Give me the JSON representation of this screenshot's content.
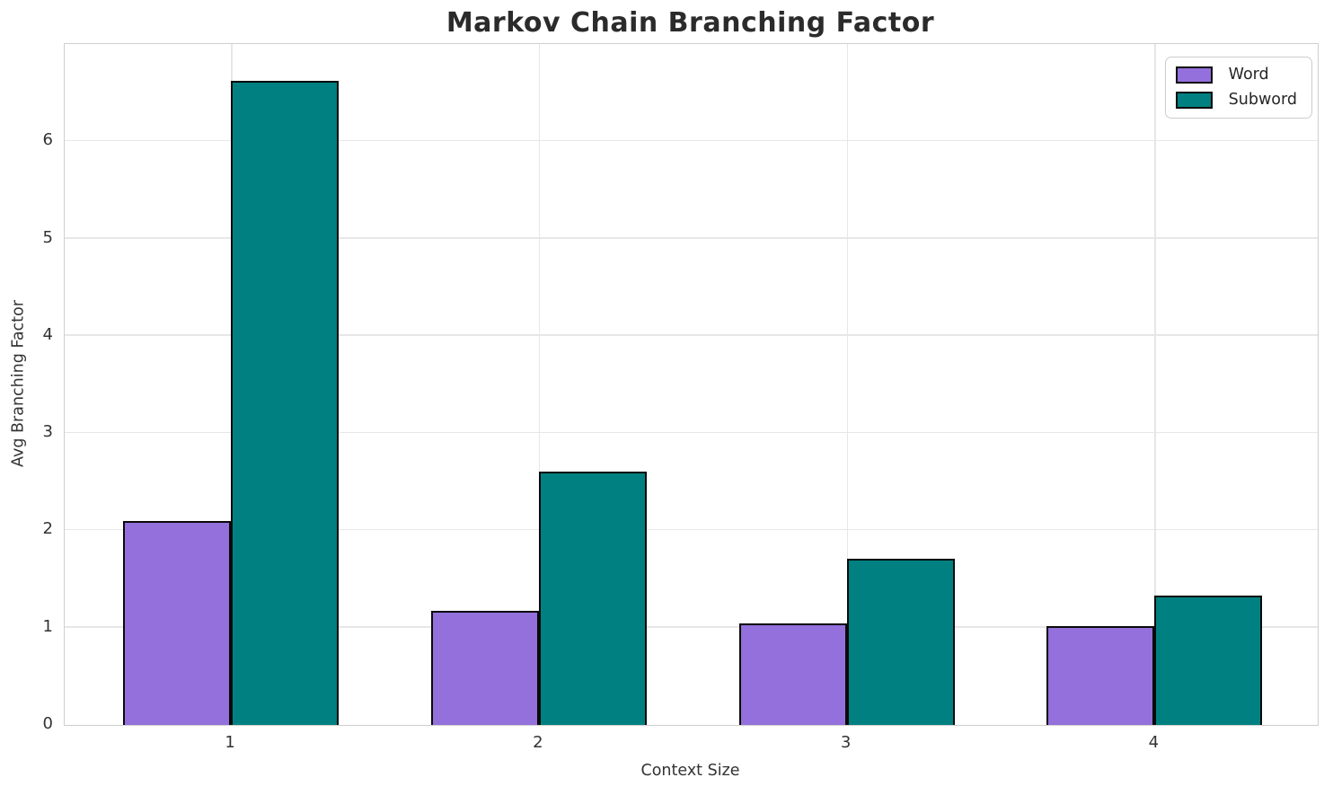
{
  "chart_data": {
    "type": "bar",
    "title": "Markov Chain Branching Factor",
    "xlabel": "Context Size",
    "ylabel": "Avg Branching Factor",
    "categories": [
      "1",
      "2",
      "3",
      "4"
    ],
    "series": [
      {
        "name": "Word",
        "color": "#9370DB",
        "values": [
          2.1,
          1.17,
          1.04,
          1.02
        ]
      },
      {
        "name": "Subword",
        "color": "#008080",
        "values": [
          6.62,
          2.6,
          1.71,
          1.33
        ]
      }
    ],
    "bar_edge_color": "#0a0a0a",
    "bar_width": 0.35,
    "xlim": [
      0.46,
      4.53
    ],
    "ylim": [
      0,
      7
    ],
    "yticks": [
      0,
      1,
      2,
      3,
      4,
      5,
      6
    ],
    "xticks": [
      1,
      2,
      3,
      4
    ],
    "grid": true,
    "grid_color": "#e7e7e7",
    "legend_position": "upper right"
  }
}
